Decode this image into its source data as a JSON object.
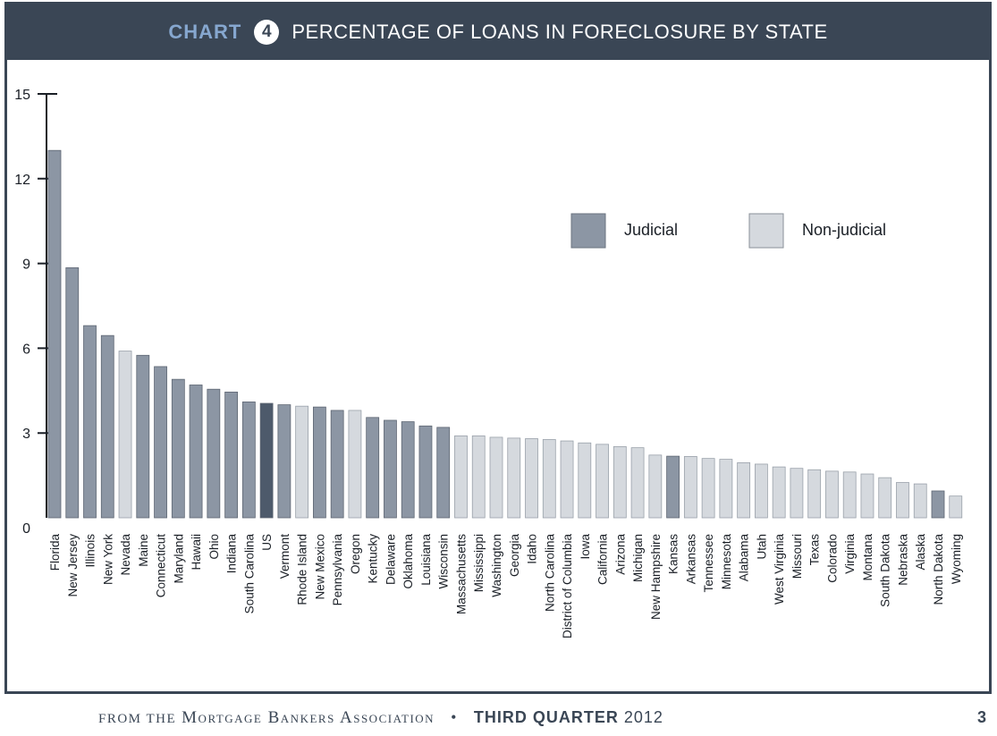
{
  "header": {
    "chart_word": "CHART",
    "chart_number": "4",
    "title": "PERCENTAGE OF LOANS IN FORECLOSURE BY STATE"
  },
  "legend": {
    "judicial_label": "Judicial",
    "nonjudicial_label": "Non-judicial"
  },
  "colors": {
    "judicial": "#8c96a4",
    "non_judicial": "#d5d9de",
    "us": "#4d5a6b",
    "frame": "#3a4655",
    "accent": "#86a7cf"
  },
  "footer": {
    "source_prefix": "from the",
    "source_org": "Mortgage Bankers Association",
    "separator": "•",
    "period": "THIRD QUARTER",
    "year": "2012",
    "page": "3"
  },
  "chart_data": {
    "type": "bar",
    "ylim": [
      0,
      15
    ],
    "yticks": [
      0,
      3,
      6,
      9,
      12,
      15
    ],
    "legend_position": "top-right",
    "categories": [
      "Florida",
      "New Jersey",
      "Illinois",
      "New York",
      "Nevada",
      "Maine",
      "Connecticut",
      "Maryland",
      "Hawaii",
      "Ohio",
      "Indiana",
      "South Carolina",
      "US",
      "Vermont",
      "Rhode Island",
      "New Mexico",
      "Pennsylvania",
      "Oregon",
      "Kentucky",
      "Delaware",
      "Oklahoma",
      "Louisiana",
      "Wisconsin",
      "Massachusetts",
      "Mississippi",
      "Washington",
      "Georgia",
      "Idaho",
      "North Carolina",
      "District of Columbia",
      "Iowa",
      "California",
      "Arizona",
      "Michigan",
      "New Hampshire",
      "Kansas",
      "Arkansas",
      "Tennessee",
      "Minnesota",
      "Alabama",
      "Utah",
      "West Virginia",
      "Missouri",
      "Texas",
      "Colorado",
      "Virginia",
      "Montana",
      "South Dakota",
      "Nebraska",
      "Alaska",
      "North Dakota",
      "Wyoming"
    ],
    "values": [
      13.0,
      8.85,
      6.8,
      6.45,
      5.9,
      5.75,
      5.35,
      4.9,
      4.7,
      4.55,
      4.45,
      4.1,
      4.05,
      4.0,
      3.95,
      3.92,
      3.8,
      3.8,
      3.55,
      3.45,
      3.4,
      3.25,
      3.2,
      2.9,
      2.9,
      2.85,
      2.82,
      2.8,
      2.77,
      2.72,
      2.65,
      2.6,
      2.52,
      2.48,
      2.22,
      2.18,
      2.17,
      2.1,
      2.07,
      1.95,
      1.9,
      1.8,
      1.75,
      1.7,
      1.65,
      1.62,
      1.55,
      1.42,
      1.25,
      1.2,
      0.95,
      0.77
    ],
    "type_by_state": [
      "judicial",
      "judicial",
      "judicial",
      "judicial",
      "non-judicial",
      "judicial",
      "judicial",
      "judicial",
      "judicial",
      "judicial",
      "judicial",
      "judicial",
      "us",
      "judicial",
      "non-judicial",
      "judicial",
      "judicial",
      "non-judicial",
      "judicial",
      "judicial",
      "judicial",
      "judicial",
      "judicial",
      "non-judicial",
      "non-judicial",
      "non-judicial",
      "non-judicial",
      "non-judicial",
      "non-judicial",
      "non-judicial",
      "non-judicial",
      "non-judicial",
      "non-judicial",
      "non-judicial",
      "non-judicial",
      "judicial",
      "non-judicial",
      "non-judicial",
      "non-judicial",
      "non-judicial",
      "non-judicial",
      "non-judicial",
      "non-judicial",
      "non-judicial",
      "non-judicial",
      "non-judicial",
      "non-judicial",
      "non-judicial",
      "non-judicial",
      "non-judicial",
      "judicial",
      "non-judicial"
    ]
  }
}
